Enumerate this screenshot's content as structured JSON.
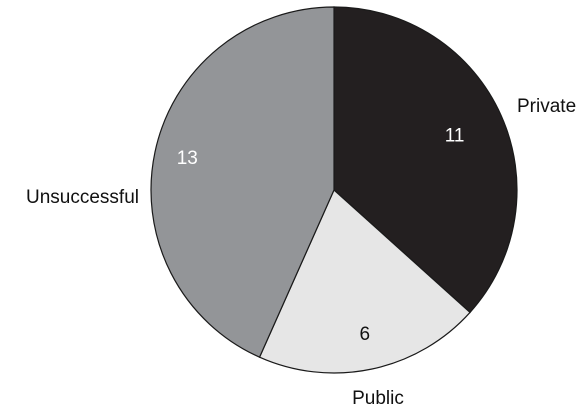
{
  "chart_data": {
    "type": "pie",
    "categories": [
      "Private",
      "Public",
      "Unsuccessful"
    ],
    "values": [
      11,
      6,
      13
    ],
    "value_labels": [
      "11",
      "6",
      "13"
    ],
    "colors": [
      "#231f20",
      "#e6e6e6",
      "#939598"
    ],
    "value_label_colors": [
      "#ffffff",
      "#111111",
      "#ffffff"
    ],
    "start_angle": "12 o'clock",
    "direction": "clockwise",
    "title": "",
    "legend": "none"
  }
}
